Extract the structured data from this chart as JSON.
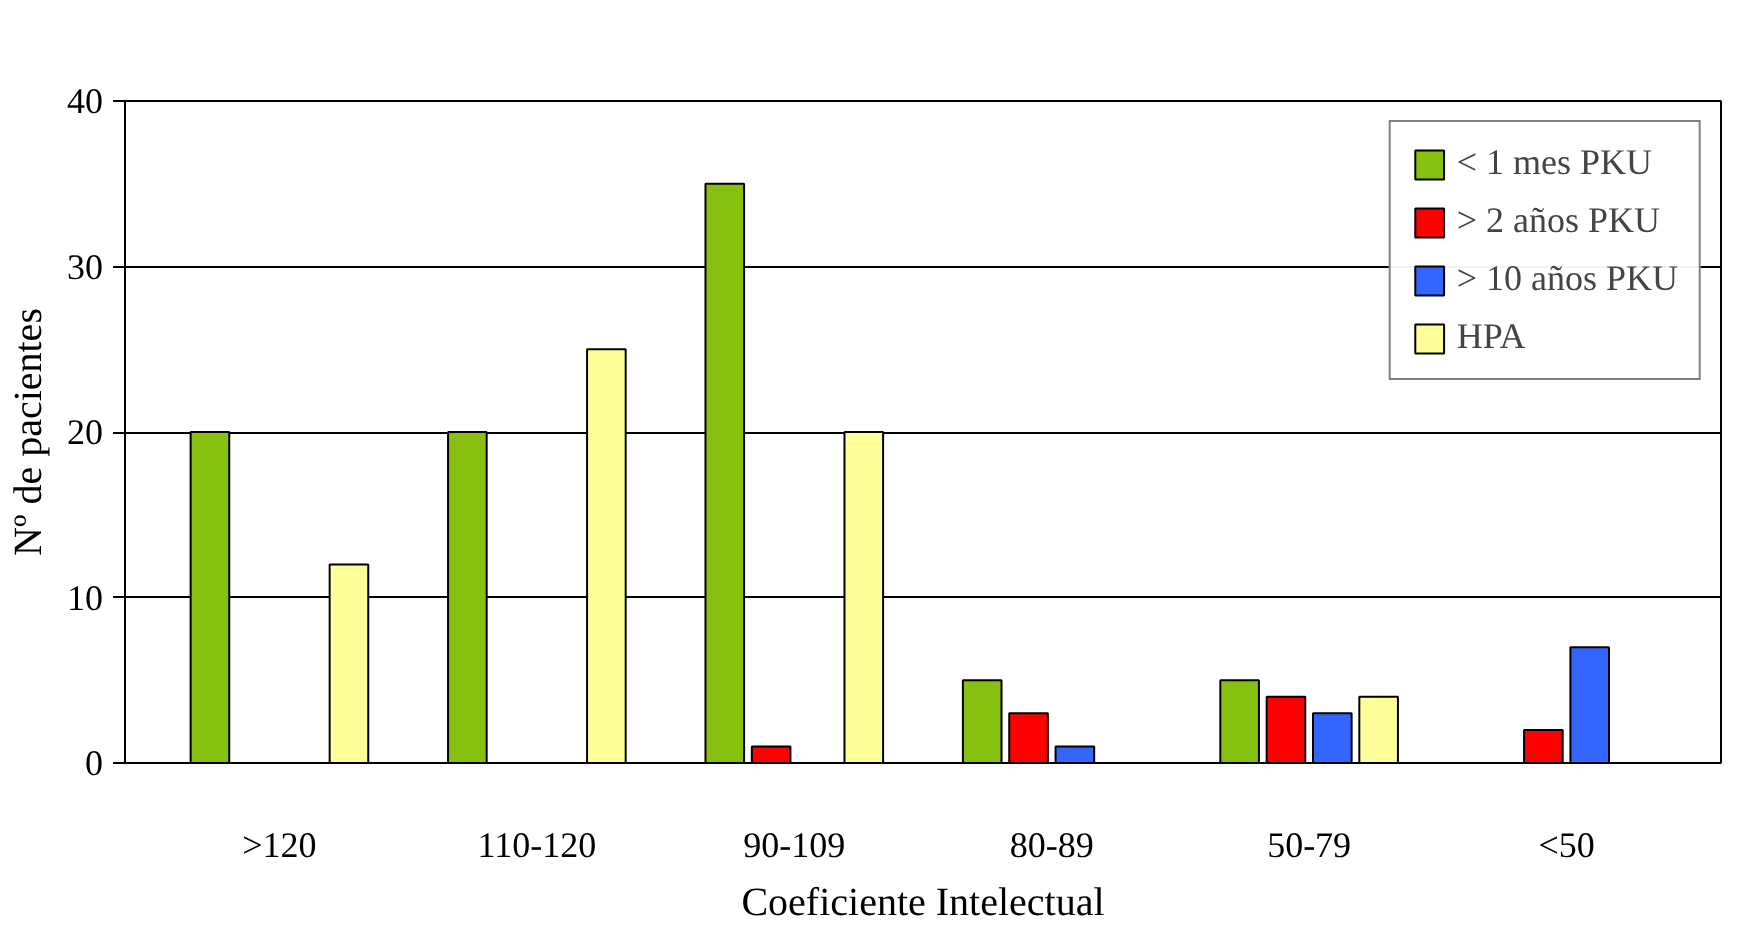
{
  "chart_data": {
    "type": "bar",
    "xlabel": "Coeficiente Intelectual",
    "ylabel": "Nº de pacientes",
    "categories": [
      ">120",
      "110-120",
      "90-109",
      "80-89",
      "50-79",
      "<50"
    ],
    "series": [
      {
        "name": "< 1 mes PKU",
        "color": "#88c010",
        "values": [
          20,
          20,
          35,
          5,
          5,
          null
        ]
      },
      {
        "name": "> 2 años PKU",
        "color": "#ff0000",
        "values": [
          null,
          null,
          1,
          3,
          4,
          2
        ]
      },
      {
        "name": "> 10 años PKU",
        "color": "#3366ff",
        "values": [
          null,
          null,
          null,
          1,
          3,
          7
        ]
      },
      {
        "name": "HPA",
        "color": "#ffff99",
        "values": [
          12,
          25,
          20,
          null,
          4,
          null
        ]
      }
    ],
    "ylim": [
      0,
      40
    ],
    "yticks": [
      0,
      10,
      20,
      30,
      40
    ],
    "grid": "y",
    "legend": "top right"
  }
}
